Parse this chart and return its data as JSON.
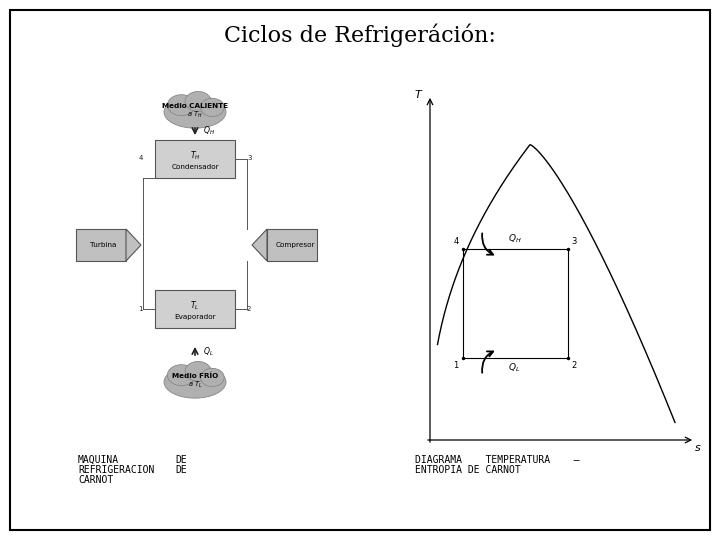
{
  "title": "Ciclos de Refrigeráción:",
  "title_fontsize": 16,
  "title_fontweight": "normal",
  "title_fontstyle": "normal",
  "bg_color": "#ffffff",
  "border_color": "#000000",
  "left_caption_col1": [
    "MAQUINA",
    "REFRIGERACION",
    "CARNOT"
  ],
  "left_caption_col2": [
    "DE",
    "DE",
    ""
  ],
  "right_caption_line1": "DIAGRAMA    TEMPERATURA    –",
  "right_caption_line2": "ENTROPIA DE CARNOT",
  "caption_fontsize": 7.0,
  "caption_font": "monospace",
  "gray_cloud": "#b0b0b0",
  "gray_box": "#d0d0d0",
  "gray_arrow_shape": "#c0c0c0",
  "line_color": "#555555",
  "text_color": "#222222"
}
